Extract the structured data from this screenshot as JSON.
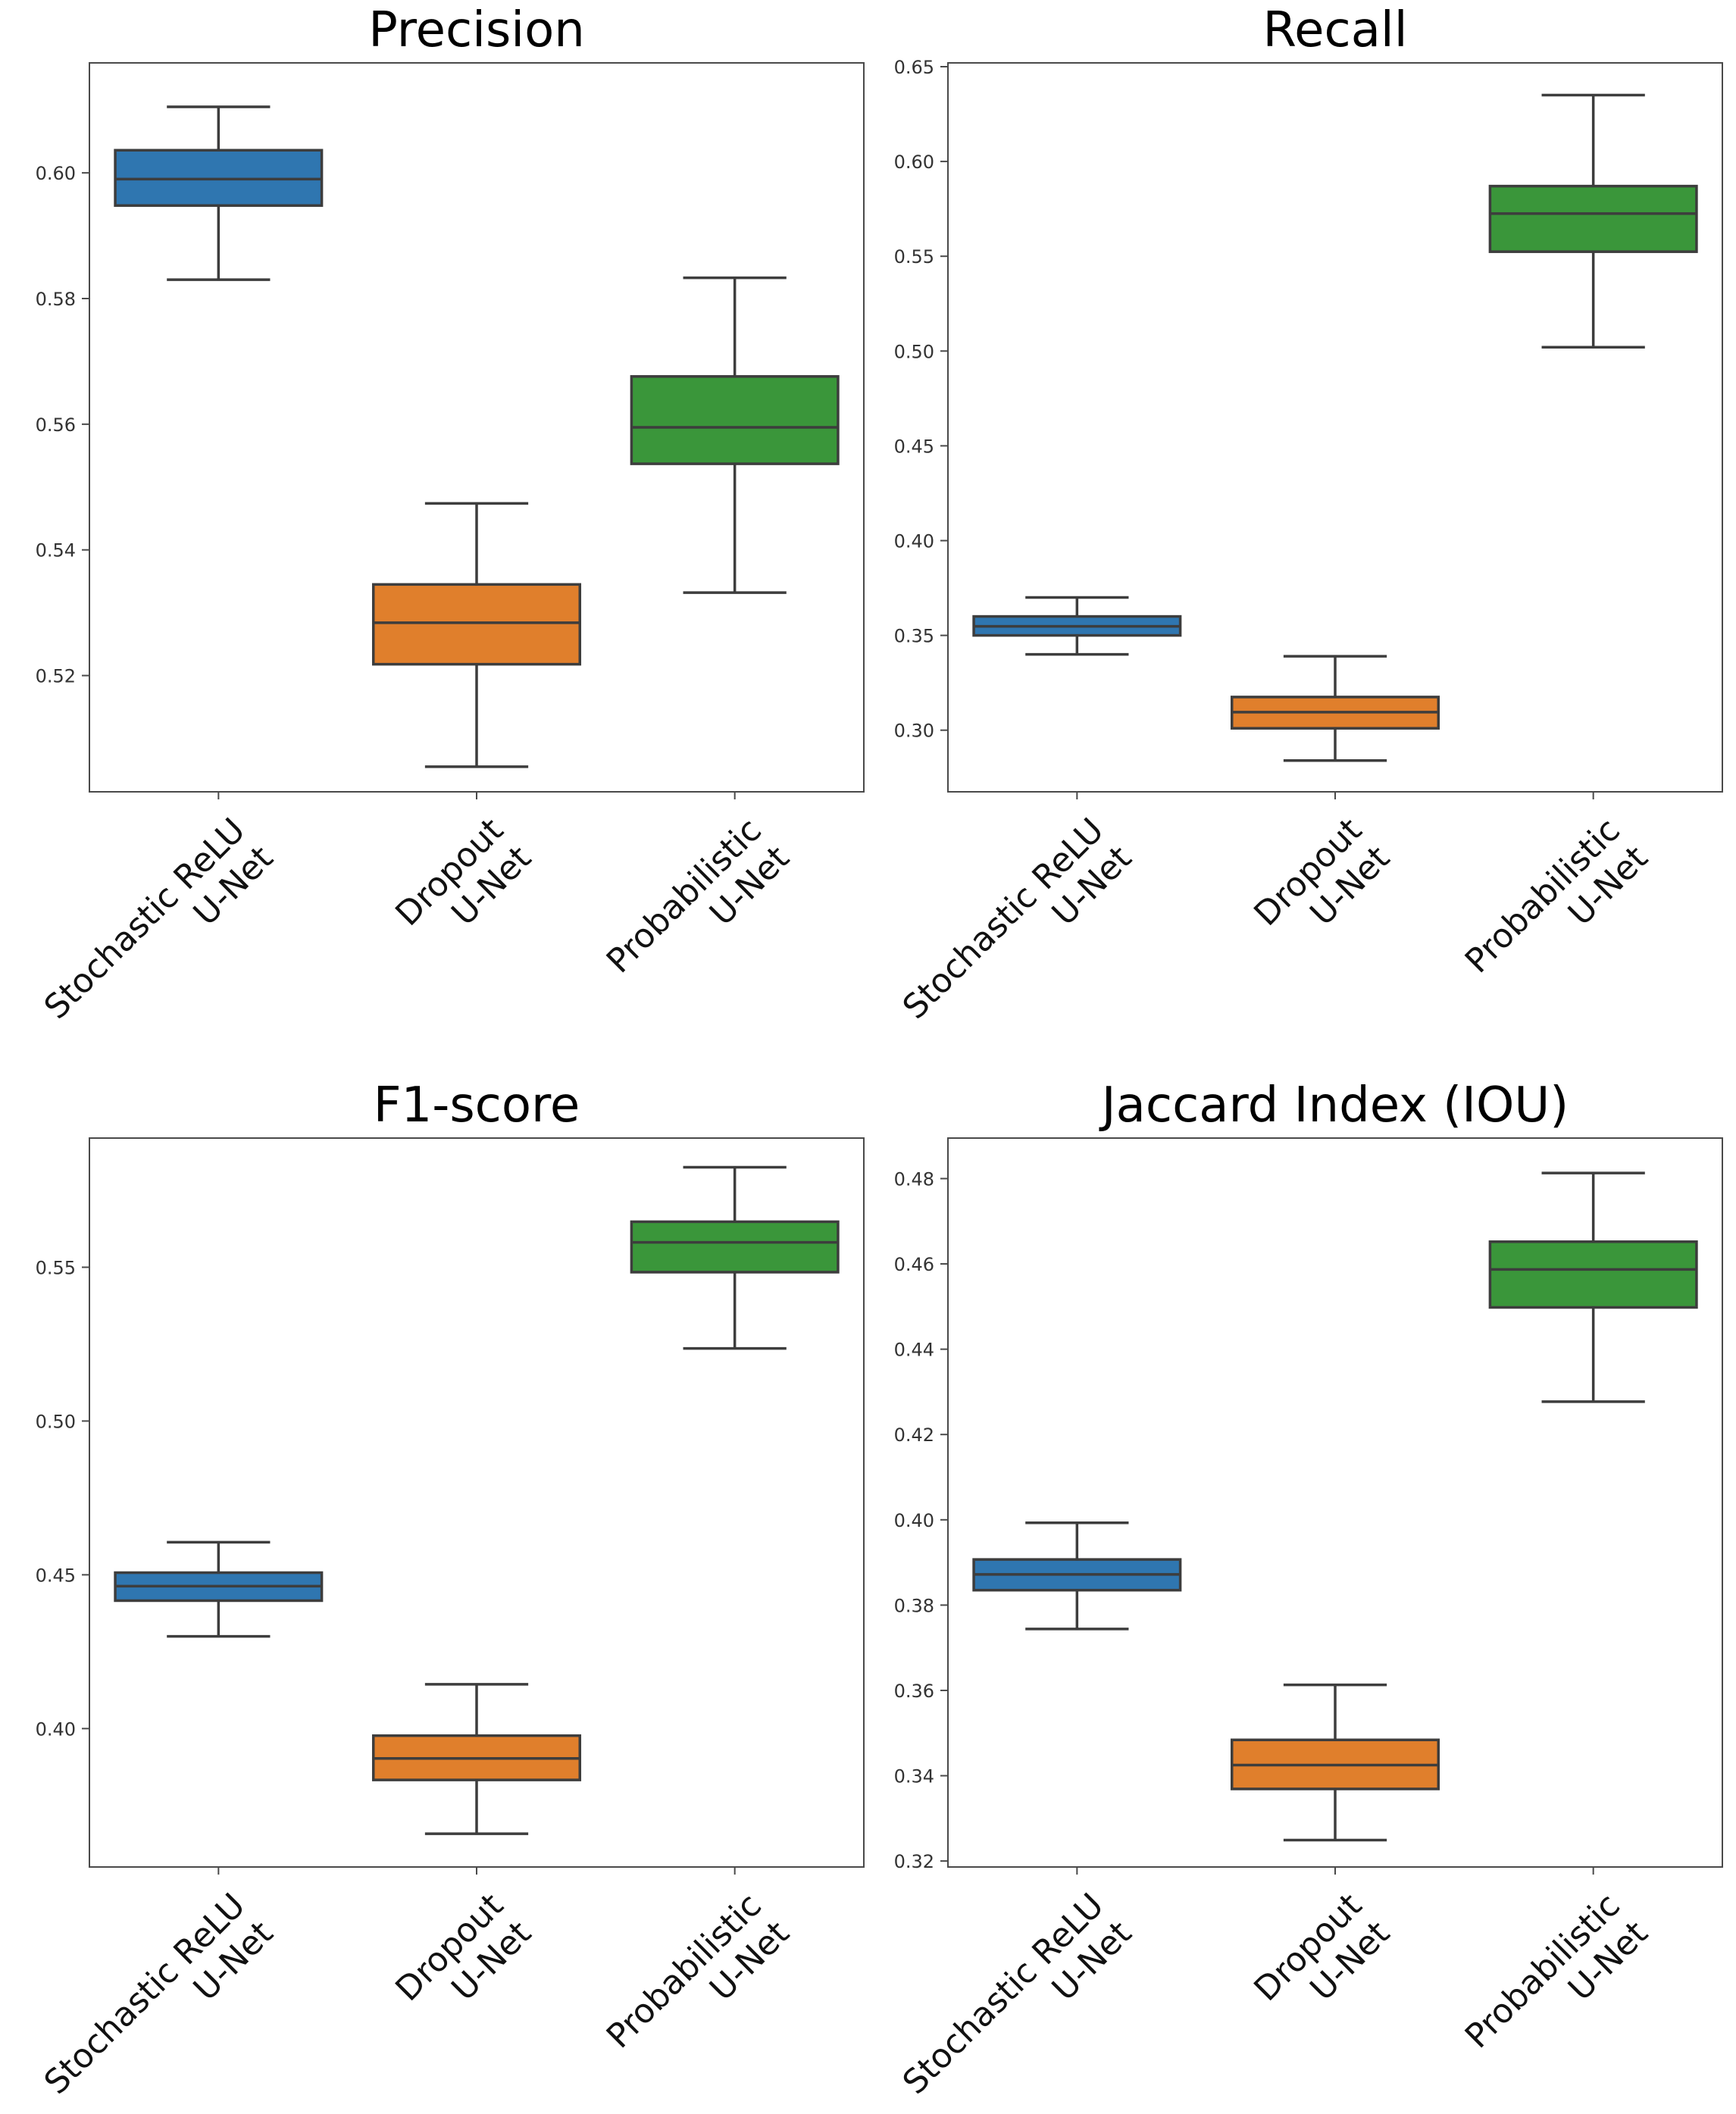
{
  "chart_data": [
    {
      "type": "box",
      "title": "Precision",
      "categories": [
        "Stochastic ReLU\nU-Net",
        "Dropout\nU-Net",
        "Probabilistic\nU-Net"
      ],
      "colors": [
        "#2f76b0",
        "#e07f2c",
        "#3a963a"
      ],
      "ylim": [
        0.5015,
        0.6175
      ],
      "yticks": [
        0.52,
        0.54,
        0.56,
        0.58,
        0.6
      ],
      "ytick_labels": [
        "0.52",
        "0.54",
        "0.56",
        "0.58",
        "0.60"
      ],
      "boxes": [
        {
          "whislo": 0.583,
          "q1": 0.5948,
          "med": 0.599,
          "q3": 0.6036,
          "whishi": 0.6105
        },
        {
          "whislo": 0.5055,
          "q1": 0.5218,
          "med": 0.5284,
          "q3": 0.5345,
          "whishi": 0.5474
        },
        {
          "whislo": 0.5332,
          "q1": 0.5537,
          "med": 0.5595,
          "q3": 0.5676,
          "whishi": 0.5833
        }
      ]
    },
    {
      "type": "box",
      "title": "Recall",
      "categories": [
        "Stochastic ReLU\nU-Net",
        "Dropout\nU-Net",
        "Probabilistic\nU-Net"
      ],
      "colors": [
        "#2f76b0",
        "#e07f2c",
        "#3a963a"
      ],
      "ylim": [
        0.2675,
        0.652
      ],
      "yticks": [
        0.3,
        0.35,
        0.4,
        0.45,
        0.5,
        0.55,
        0.6,
        0.65
      ],
      "ytick_labels": [
        "0.30",
        "0.35",
        "0.40",
        "0.45",
        "0.50",
        "0.55",
        "0.60",
        "0.65"
      ],
      "boxes": [
        {
          "whislo": 0.34,
          "q1": 0.35,
          "med": 0.3548,
          "q3": 0.36,
          "whishi": 0.37
        },
        {
          "whislo": 0.284,
          "q1": 0.301,
          "med": 0.3095,
          "q3": 0.3175,
          "whishi": 0.339
        },
        {
          "whislo": 0.502,
          "q1": 0.5524,
          "med": 0.5725,
          "q3": 0.587,
          "whishi": 0.635
        }
      ]
    },
    {
      "type": "box",
      "title": "F1-score",
      "categories": [
        "Stochastic ReLU\nU-Net",
        "Dropout\nU-Net",
        "Probabilistic\nU-Net"
      ],
      "colors": [
        "#2f76b0",
        "#e07f2c",
        "#3a963a"
      ],
      "ylim": [
        0.355,
        0.592
      ],
      "yticks": [
        0.4,
        0.45,
        0.5,
        0.55
      ],
      "ytick_labels": [
        "0.40",
        "0.45",
        "0.50",
        "0.55"
      ],
      "boxes": [
        {
          "whislo": 0.43,
          "q1": 0.4416,
          "med": 0.4463,
          "q3": 0.4507,
          "whishi": 0.4606
        },
        {
          "whislo": 0.3658,
          "q1": 0.3833,
          "med": 0.3903,
          "q3": 0.3977,
          "whishi": 0.4144
        },
        {
          "whislo": 0.5236,
          "q1": 0.5484,
          "med": 0.5581,
          "q3": 0.5648,
          "whishi": 0.5825
        }
      ]
    },
    {
      "type": "box",
      "title": "Jaccard Index (IOU)",
      "categories": [
        "Stochastic ReLU\nU-Net",
        "Dropout\nU-Net",
        "Probabilistic\nU-Net"
      ],
      "colors": [
        "#2f76b0",
        "#e07f2c",
        "#3a963a"
      ],
      "ylim": [
        0.3186,
        0.4895
      ],
      "yticks": [
        0.32,
        0.34,
        0.36,
        0.38,
        0.4,
        0.42,
        0.44,
        0.46,
        0.48
      ],
      "ytick_labels": [
        "0.32",
        "0.34",
        "0.36",
        "0.38",
        "0.40",
        "0.42",
        "0.44",
        "0.46",
        "0.48"
      ],
      "boxes": [
        {
          "whislo": 0.3744,
          "q1": 0.3835,
          "med": 0.3872,
          "q3": 0.3907,
          "whishi": 0.3993
        },
        {
          "whislo": 0.3249,
          "q1": 0.3369,
          "med": 0.3425,
          "q3": 0.3484,
          "whishi": 0.3613
        },
        {
          "whislo": 0.4277,
          "q1": 0.4498,
          "med": 0.4587,
          "q3": 0.4652,
          "whishi": 0.4813
        }
      ]
    }
  ]
}
